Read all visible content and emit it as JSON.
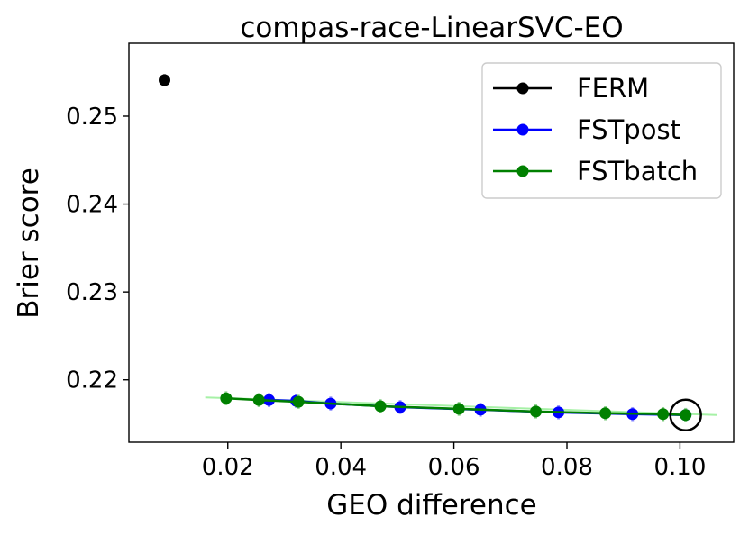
{
  "chart_data": {
    "type": "scatter",
    "title": "compas-race-LinearSVC-EO",
    "xlabel": "GEO difference",
    "ylabel": "Brier score",
    "xlim": [
      0.0025,
      0.1095
    ],
    "ylim": [
      0.2129,
      0.2583
    ],
    "xticks": [
      0.02,
      0.04,
      0.06,
      0.08,
      0.1
    ],
    "xtick_labels": [
      "0.02",
      "0.04",
      "0.06",
      "0.08",
      "0.10"
    ],
    "yticks": [
      0.22,
      0.23,
      0.24,
      0.25
    ],
    "ytick_labels": [
      "0.22",
      "0.23",
      "0.24",
      "0.25"
    ],
    "grid": false,
    "legend_position": "top-right",
    "series": [
      {
        "name": "FERM",
        "color": "#000000",
        "marker": "circle",
        "points": [
          {
            "x": 0.0088,
            "y": 0.2541,
            "yerr": 0.0007
          }
        ]
      },
      {
        "name": "FSTpost",
        "color": "#0000ff",
        "marker": "circle",
        "line": true,
        "points": [
          {
            "x": 0.0273,
            "y": 0.2177,
            "yerr": 0.0008
          },
          {
            "x": 0.0321,
            "y": 0.2176,
            "yerr": 0.0008
          },
          {
            "x": 0.0382,
            "y": 0.2173,
            "yerr": 0.0008
          },
          {
            "x": 0.0505,
            "y": 0.2169,
            "yerr": 0.0008
          },
          {
            "x": 0.0647,
            "y": 0.2166,
            "yerr": 0.0008
          },
          {
            "x": 0.0785,
            "y": 0.2163,
            "yerr": 0.0008
          },
          {
            "x": 0.0916,
            "y": 0.2161,
            "yerr": 0.0008
          },
          {
            "x": 0.101,
            "y": 0.216,
            "yerr": 0.0008
          }
        ]
      },
      {
        "name": "FSTbatch",
        "color": "#008000",
        "marker": "circle",
        "line": true,
        "points": [
          {
            "x": 0.0197,
            "y": 0.2179,
            "yerr": 0.0008
          },
          {
            "x": 0.0255,
            "y": 0.2177,
            "yerr": 0.0008
          },
          {
            "x": 0.0325,
            "y": 0.2175,
            "yerr": 0.0008
          },
          {
            "x": 0.047,
            "y": 0.217,
            "yerr": 0.0008
          },
          {
            "x": 0.0609,
            "y": 0.2167,
            "yerr": 0.0008
          },
          {
            "x": 0.0745,
            "y": 0.2164,
            "yerr": 0.0008
          },
          {
            "x": 0.0868,
            "y": 0.2162,
            "yerr": 0.0008
          },
          {
            "x": 0.097,
            "y": 0.2161,
            "yerr": 0.0008
          },
          {
            "x": 0.101,
            "y": 0.216,
            "yerr": 0.0008
          }
        ],
        "uncertainty_line": {
          "color": "#90ee90",
          "x": [
            0.016,
            0.1065
          ],
          "y": [
            0.218,
            0.216
          ]
        }
      }
    ],
    "highlight": {
      "x": 0.101,
      "y": 0.216,
      "marker": "open-circle",
      "color": "#000000"
    }
  }
}
